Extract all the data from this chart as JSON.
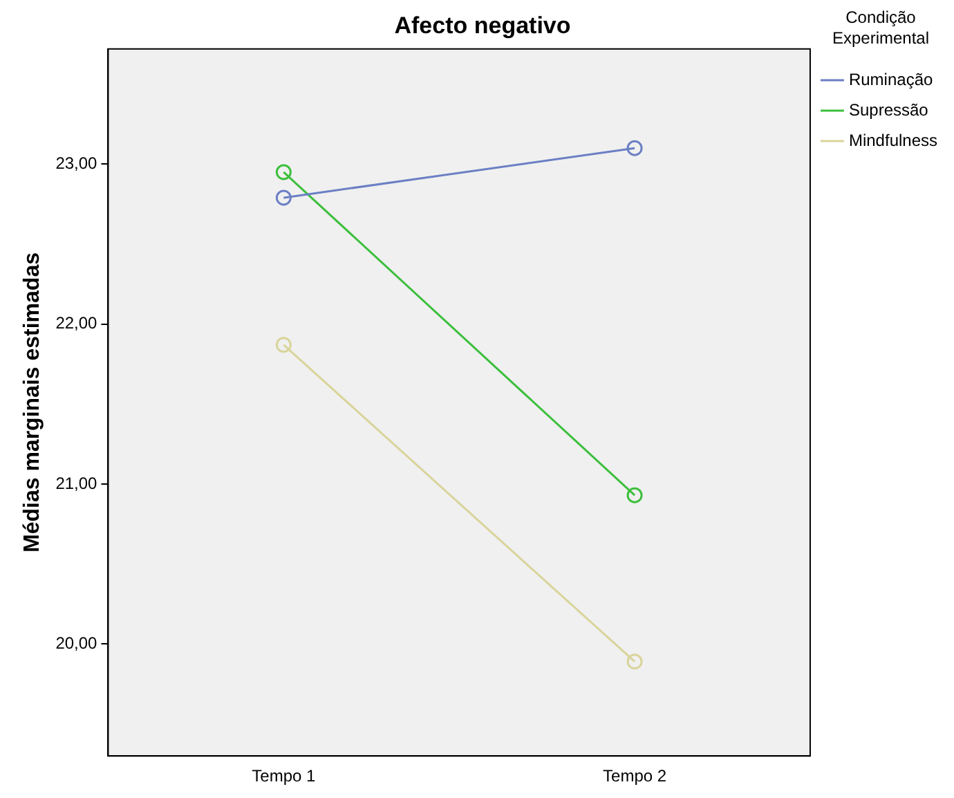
{
  "chart_data": {
    "type": "line",
    "title": "Afecto negativo",
    "ylabel": "Médias marginais estimadas",
    "legend_title": "Condição Experimental",
    "categories": [
      "Tempo 1",
      "Tempo 2"
    ],
    "series": [
      {
        "name": "Ruminação",
        "color": "#6b7fc4",
        "values": [
          22.79,
          23.1
        ]
      },
      {
        "name": "Supressão",
        "color": "#3cbf3c",
        "values": [
          22.95,
          20.93
        ]
      },
      {
        "name": "Mindfulness",
        "color": "#d9d49a",
        "values": [
          21.87,
          19.89
        ]
      }
    ],
    "ylim": [
      19.3,
      23.72
    ],
    "yticks": [
      {
        "value": 20,
        "label": "20,00"
      },
      {
        "value": 21,
        "label": "21,00"
      },
      {
        "value": 22,
        "label": "22,00"
      },
      {
        "value": 23,
        "label": "23,00"
      }
    ],
    "grid": false,
    "legend": "right",
    "marker": "circle",
    "line_style": "solid"
  }
}
